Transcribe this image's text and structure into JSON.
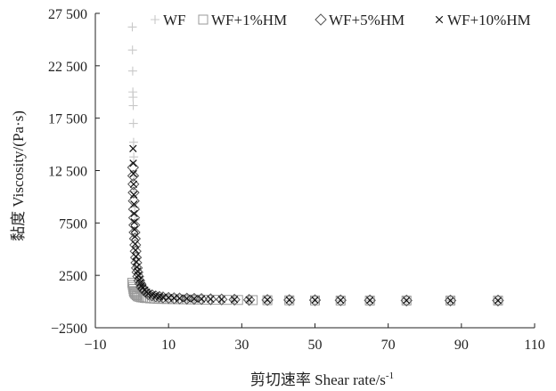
{
  "chart_data": {
    "type": "scatter",
    "title": "",
    "xlabel": "剪切速率 Shear rate/s",
    "xlabel_superscript": "-1",
    "ylabel": "黏度 Viscosity/(Pa·s)",
    "xlim": [
      -10,
      110
    ],
    "ylim": [
      -2500,
      27500
    ],
    "xticks": [
      "−10",
      "10",
      "30",
      "50",
      "70",
      "90",
      "110"
    ],
    "xtick_values": [
      -10,
      10,
      30,
      50,
      70,
      90,
      110
    ],
    "yticks": [
      "−2500",
      "2500",
      "7500",
      "12 500",
      "17 500",
      "22 500",
      "27 500"
    ],
    "ytick_values": [
      -2500,
      2500,
      7500,
      12500,
      17500,
      22500,
      27500
    ],
    "grid": false,
    "legend_placement": "top",
    "series": [
      {
        "name": "WF",
        "marker": "plus",
        "color": "#c8c8c8",
        "points": [
          [
            0.1,
            26200
          ],
          [
            0.15,
            24000
          ],
          [
            0.2,
            22000
          ],
          [
            0.25,
            20000
          ],
          [
            0.3,
            19500
          ],
          [
            0.35,
            18700
          ],
          [
            0.4,
            17000
          ],
          [
            0.45,
            15200
          ],
          [
            0.5,
            13800
          ],
          [
            0.6,
            12000
          ],
          [
            0.7,
            10500
          ],
          [
            0.8,
            9000
          ],
          [
            0.9,
            7800
          ],
          [
            1.0,
            6500
          ],
          [
            1.2,
            5200
          ],
          [
            1.4,
            4200
          ],
          [
            1.6,
            3300
          ],
          [
            1.8,
            2600
          ],
          [
            2.0,
            2000
          ],
          [
            2.5,
            1500
          ],
          [
            3.0,
            1200
          ],
          [
            3.5,
            900
          ],
          [
            4.0,
            700
          ],
          [
            5.0,
            500
          ],
          [
            6.0,
            400
          ],
          [
            8.0,
            300
          ],
          [
            10.0,
            250
          ],
          [
            12.0,
            200
          ],
          [
            14.0,
            180
          ],
          [
            16.0,
            160
          ],
          [
            18.0,
            150
          ],
          [
            21.0,
            140
          ],
          [
            24.0,
            130
          ],
          [
            28.0,
            120
          ],
          [
            32.0,
            110
          ],
          [
            37.0,
            100
          ],
          [
            43.0,
            100
          ],
          [
            50.0,
            100
          ],
          [
            57.0,
            100
          ],
          [
            65.0,
            100
          ],
          [
            75.0,
            100
          ],
          [
            87.0,
            100
          ],
          [
            100.0,
            100
          ]
        ]
      },
      {
        "name": "WF+1%HM",
        "marker": "square",
        "color": "#9a9a9a",
        "points": [
          [
            0.1,
            1800
          ],
          [
            0.2,
            1600
          ],
          [
            0.3,
            1400
          ],
          [
            0.4,
            1200
          ],
          [
            0.5,
            1000
          ],
          [
            0.6,
            900
          ],
          [
            0.8,
            800
          ],
          [
            1.0,
            700
          ],
          [
            1.3,
            600
          ],
          [
            1.6,
            500
          ],
          [
            2.0,
            450
          ],
          [
            2.5,
            400
          ],
          [
            3.0,
            380
          ],
          [
            3.5,
            350
          ],
          [
            4.0,
            330
          ],
          [
            5.0,
            300
          ],
          [
            6.0,
            280
          ],
          [
            7.0,
            260
          ],
          [
            8.0,
            250
          ],
          [
            9.5,
            240
          ],
          [
            11.0,
            230
          ],
          [
            12.5,
            220
          ],
          [
            14.0,
            210
          ],
          [
            16.0,
            200
          ],
          [
            18.0,
            190
          ],
          [
            20.5,
            180
          ],
          [
            23.0,
            170
          ],
          [
            26.0,
            160
          ],
          [
            29.0,
            150
          ],
          [
            33.0,
            140
          ],
          [
            37.0,
            130
          ],
          [
            43.0,
            120
          ],
          [
            50.0,
            110
          ],
          [
            57.0,
            100
          ],
          [
            65.0,
            100
          ],
          [
            75.0,
            100
          ],
          [
            87.0,
            100
          ],
          [
            100.0,
            100
          ]
        ]
      },
      {
        "name": "WF+5%HM",
        "marker": "diamond",
        "color": "#555555",
        "points": [
          [
            0.3,
            12800
          ],
          [
            0.35,
            12000
          ],
          [
            0.4,
            11200
          ],
          [
            0.45,
            10400
          ],
          [
            0.5,
            9600
          ],
          [
            0.55,
            8800
          ],
          [
            0.6,
            8000
          ],
          [
            0.65,
            7300
          ],
          [
            0.7,
            6600
          ],
          [
            0.8,
            6000
          ],
          [
            0.9,
            5400
          ],
          [
            1.0,
            4800
          ],
          [
            1.1,
            4200
          ],
          [
            1.2,
            3700
          ],
          [
            1.35,
            3200
          ],
          [
            1.5,
            2800
          ],
          [
            1.7,
            2400
          ],
          [
            2.0,
            2000
          ],
          [
            2.3,
            1700
          ],
          [
            2.6,
            1400
          ],
          [
            3.0,
            1200
          ],
          [
            3.5,
            1000
          ],
          [
            4.0,
            850
          ],
          [
            4.5,
            700
          ],
          [
            5.5,
            600
          ],
          [
            6.5,
            500
          ],
          [
            7.5,
            450
          ],
          [
            8.5,
            400
          ],
          [
            10.0,
            350
          ],
          [
            11.5,
            320
          ],
          [
            13.0,
            300
          ],
          [
            15.0,
            280
          ],
          [
            17.0,
            260
          ],
          [
            19.0,
            240
          ],
          [
            21.5,
            220
          ],
          [
            24.5,
            200
          ],
          [
            28.0,
            180
          ],
          [
            32.0,
            160
          ],
          [
            37.0,
            150
          ],
          [
            43.0,
            140
          ],
          [
            50.0,
            130
          ],
          [
            57.0,
            120
          ],
          [
            65.0,
            110
          ],
          [
            75.0,
            100
          ],
          [
            87.0,
            100
          ],
          [
            100.0,
            100
          ]
        ]
      },
      {
        "name": "WF+10%HM",
        "marker": "x",
        "color": "#111111",
        "points": [
          [
            0.3,
            14600
          ],
          [
            0.35,
            13200
          ],
          [
            0.4,
            12200
          ],
          [
            0.45,
            11200
          ],
          [
            0.5,
            10200
          ],
          [
            0.55,
            9300
          ],
          [
            0.6,
            8400
          ],
          [
            0.65,
            7600
          ],
          [
            0.7,
            6900
          ],
          [
            0.8,
            6200
          ],
          [
            0.9,
            5500
          ],
          [
            1.0,
            4900
          ],
          [
            1.1,
            4300
          ],
          [
            1.2,
            3800
          ],
          [
            1.35,
            3300
          ],
          [
            1.5,
            2900
          ],
          [
            1.7,
            2500
          ],
          [
            2.0,
            2100
          ],
          [
            2.3,
            1800
          ],
          [
            2.6,
            1500
          ],
          [
            3.0,
            1300
          ],
          [
            3.5,
            1100
          ],
          [
            4.0,
            900
          ],
          [
            4.5,
            750
          ],
          [
            5.5,
            650
          ],
          [
            6.5,
            550
          ],
          [
            7.5,
            480
          ],
          [
            8.5,
            420
          ],
          [
            10.0,
            370
          ],
          [
            11.5,
            340
          ],
          [
            13.0,
            310
          ],
          [
            15.0,
            290
          ],
          [
            17.0,
            270
          ],
          [
            19.0,
            250
          ],
          [
            21.5,
            230
          ],
          [
            24.5,
            210
          ],
          [
            28.0,
            190
          ],
          [
            32.0,
            170
          ],
          [
            37.0,
            160
          ],
          [
            43.0,
            150
          ],
          [
            50.0,
            140
          ],
          [
            57.0,
            130
          ],
          [
            65.0,
            120
          ],
          [
            75.0,
            110
          ],
          [
            87.0,
            100
          ],
          [
            100.0,
            100
          ]
        ]
      }
    ]
  }
}
